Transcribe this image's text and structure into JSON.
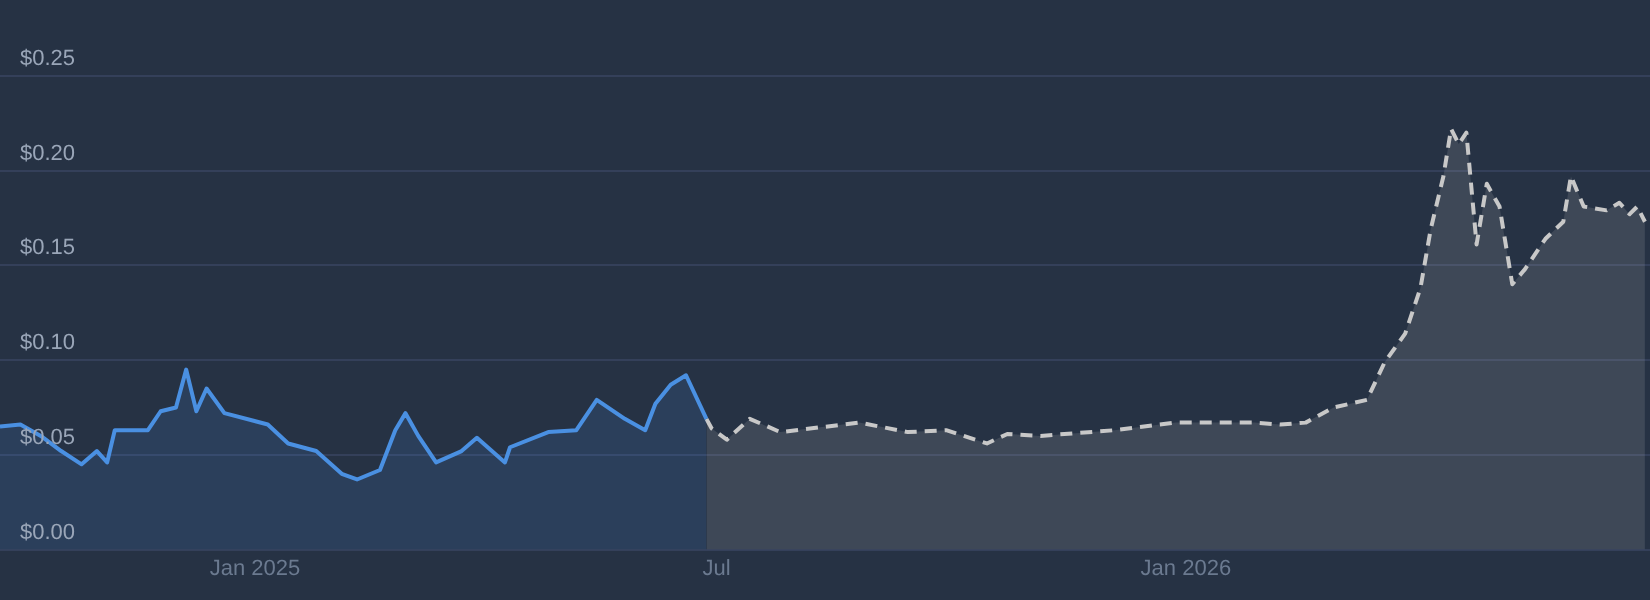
{
  "chart_data": {
    "type": "area",
    "xlim": [
      "2024-09-23",
      "2026-07-02"
    ],
    "xticks": [
      {
        "value": "2025-01-01",
        "label": "Jan 2025"
      },
      {
        "value": "2025-07-01",
        "label": "Jul"
      },
      {
        "value": "2026-01-01",
        "label": "Jan 2026"
      }
    ],
    "ylim": [
      0,
      0.29
    ],
    "yticks": [
      {
        "value": 0,
        "label": "$0.00"
      },
      {
        "value": 0.05,
        "label": "$0.05"
      },
      {
        "value": 0.1,
        "label": "$0.10"
      },
      {
        "value": 0.15,
        "label": "$0.15"
      },
      {
        "value": 0.2,
        "label": "$0.20"
      },
      {
        "value": 0.25,
        "label": "$0.25"
      }
    ],
    "grid": "y",
    "legend": false,
    "series": [
      {
        "color": "#4a90e2",
        "line_style": "solid",
        "x": [
          "2024-09-23",
          "2024-10-01",
          "2024-10-09",
          "2024-10-17",
          "2024-10-25",
          "2024-10-31",
          "2024-11-04",
          "2024-11-07",
          "2024-11-20",
          "2024-11-25",
          "2024-12-01",
          "2024-12-05",
          "2024-12-09",
          "2024-12-13",
          "2024-12-20",
          "2025-01-06",
          "2025-01-14",
          "2025-01-25",
          "2025-02-04",
          "2025-02-10",
          "2025-02-19",
          "2025-02-25",
          "2025-03-01",
          "2025-03-06",
          "2025-03-13",
          "2025-03-23",
          "2025-03-29",
          "2025-04-09",
          "2025-04-11",
          "2025-04-26",
          "2025-05-07",
          "2025-05-15",
          "2025-05-26",
          "2025-06-03",
          "2025-06-07",
          "2025-06-13",
          "2025-06-19",
          "2025-06-27"
        ],
        "values": [
          0.065,
          0.066,
          0.06,
          0.052,
          0.045,
          0.052,
          0.046,
          0.063,
          0.063,
          0.073,
          0.075,
          0.095,
          0.073,
          0.085,
          0.072,
          0.066,
          0.056,
          0.052,
          0.04,
          0.037,
          0.042,
          0.063,
          0.072,
          0.06,
          0.046,
          0.052,
          0.059,
          0.046,
          0.054,
          0.062,
          0.063,
          0.079,
          0.069,
          0.063,
          0.077,
          0.087,
          0.092,
          0.069
        ]
      },
      {
        "color": "#c8c8c8",
        "line_style": "dashed",
        "x": [
          "2025-06-27",
          "2025-06-29",
          "2025-07-05",
          "2025-07-14",
          "2025-07-26",
          "2025-08-26",
          "2025-09-14",
          "2025-09-29",
          "2025-10-15",
          "2025-10-23",
          "2025-11-05",
          "2025-12-04",
          "2025-12-28",
          "2026-01-28",
          "2026-02-07",
          "2026-02-17",
          "2026-02-28",
          "2026-03-13",
          "2026-03-20",
          "2026-03-28",
          "2026-04-03",
          "2026-04-07",
          "2026-04-12",
          "2026-04-15",
          "2026-04-18",
          "2026-04-21",
          "2026-04-25",
          "2026-04-29",
          "2026-05-04",
          "2026-05-09",
          "2026-05-14",
          "2026-05-22",
          "2026-05-29",
          "2026-06-01",
          "2026-06-06",
          "2026-06-15",
          "2026-06-20",
          "2026-06-24",
          "2026-06-27",
          "2026-06-30"
        ],
        "values": [
          0.069,
          0.064,
          0.058,
          0.069,
          0.062,
          0.067,
          0.062,
          0.063,
          0.056,
          0.061,
          0.06,
          0.063,
          0.067,
          0.067,
          0.066,
          0.067,
          0.075,
          0.079,
          0.099,
          0.114,
          0.138,
          0.169,
          0.197,
          0.222,
          0.214,
          0.22,
          0.161,
          0.193,
          0.181,
          0.14,
          0.148,
          0.164,
          0.173,
          0.197,
          0.181,
          0.179,
          0.183,
          0.177,
          0.181,
          0.173
        ]
      }
    ]
  }
}
